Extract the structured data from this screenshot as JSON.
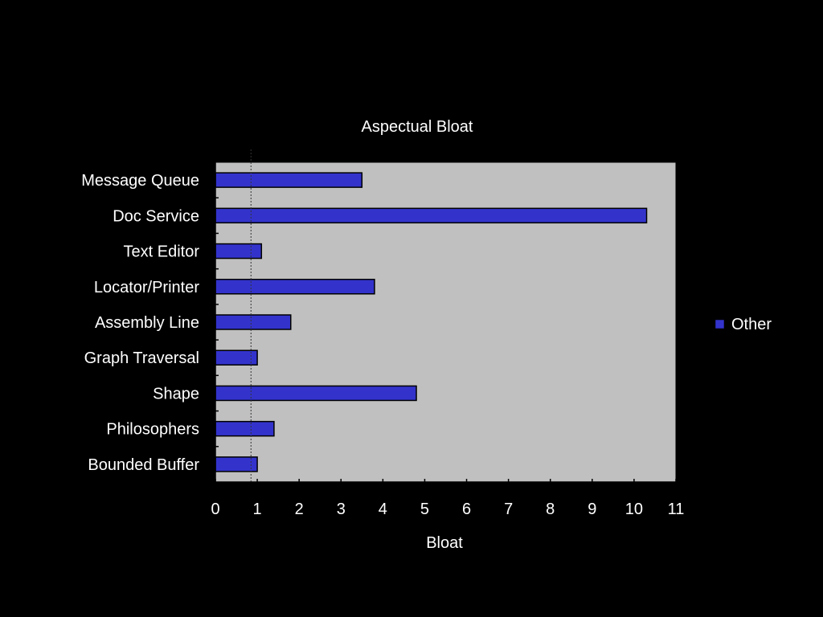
{
  "chart_data": {
    "type": "bar",
    "orientation": "horizontal",
    "title": "Aspectual Bloat",
    "xlabel": "Bloat",
    "ylabel": "",
    "categories": [
      "Message Queue",
      "Doc Service",
      "Text Editor",
      "Locator/Printer",
      "Assembly Line",
      "Graph Traversal",
      "Shape",
      "Philosophers",
      "Bounded Buffer"
    ],
    "series": [
      {
        "name": "Other",
        "values": [
          3.5,
          10.3,
          1.1,
          3.8,
          1.8,
          1.0,
          4.8,
          1.4,
          1.0
        ]
      }
    ],
    "xlim": [
      0,
      11
    ],
    "xticks": [
      "0",
      "1",
      "2",
      "3",
      "4",
      "5",
      "6",
      "7",
      "8",
      "9",
      "10",
      "11"
    ],
    "reference_line_x": 0.85,
    "grid": false,
    "legend_position": "right",
    "colors": {
      "bar": "#3333cc",
      "plot_bg": "#c0c0c0",
      "background": "#000000"
    }
  }
}
